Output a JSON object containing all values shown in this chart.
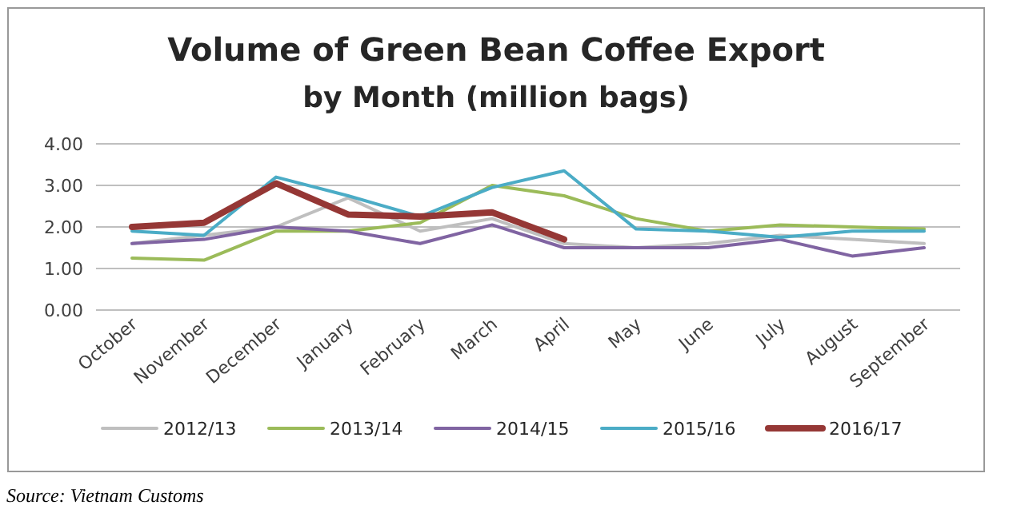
{
  "chart_data": {
    "type": "line",
    "title": "Volume of Green Bean Coffee Export",
    "subtitle": "by Month (million bags)",
    "categories": [
      "October",
      "November",
      "December",
      "January",
      "February",
      "March",
      "April",
      "May",
      "June",
      "July",
      "August",
      "September"
    ],
    "series": [
      {
        "name": "2012/13",
        "color": "#bfbfbf",
        "values": [
          1.6,
          1.8,
          2.0,
          2.7,
          1.9,
          2.2,
          1.6,
          1.5,
          1.6,
          1.8,
          1.7,
          1.6
        ]
      },
      {
        "name": "2013/14",
        "color": "#9bbb59",
        "values": [
          1.25,
          1.2,
          1.9,
          1.9,
          2.1,
          3.0,
          2.75,
          2.2,
          1.9,
          2.05,
          2.0,
          1.95
        ]
      },
      {
        "name": "2014/15",
        "color": "#8064a2",
        "values": [
          1.6,
          1.7,
          2.0,
          1.9,
          1.6,
          2.05,
          1.5,
          1.5,
          1.5,
          1.7,
          1.3,
          1.5
        ]
      },
      {
        "name": "2015/16",
        "color": "#4bacc6",
        "values": [
          1.9,
          1.8,
          3.2,
          2.75,
          2.25,
          2.95,
          3.35,
          1.95,
          1.9,
          1.75,
          1.9,
          1.9
        ]
      },
      {
        "name": "2016/17",
        "color": "#953735",
        "values": [
          2.0,
          2.1,
          3.05,
          2.3,
          2.25,
          2.35,
          1.7,
          null,
          null,
          null,
          null,
          null
        ]
      }
    ],
    "ylim": [
      0,
      4
    ],
    "yticks": [
      {
        "value": 0,
        "label": "0.00"
      },
      {
        "value": 1,
        "label": "1.00"
      },
      {
        "value": 2,
        "label": "2.00"
      },
      {
        "value": 3,
        "label": "3.00"
      },
      {
        "value": 4,
        "label": "4.00"
      }
    ],
    "grid": "y",
    "legend": "bottom",
    "marker": "none",
    "line_style": "solid",
    "annotations": [
      "Source: Vietnam Customs"
    ]
  }
}
